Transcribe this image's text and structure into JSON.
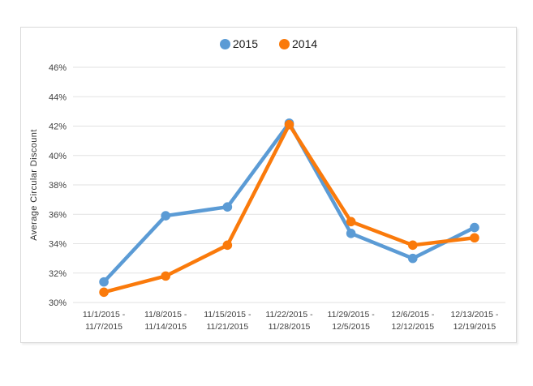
{
  "chart_data": {
    "type": "line",
    "title": "",
    "ylabel": "Average Circular Discount",
    "xlabel": "",
    "categories": [
      "11/1/2015 - 11/7/2015",
      "11/8/2015 - 11/14/2015",
      "11/15/2015 - 11/21/2015",
      "11/22/2015 - 11/28/2015",
      "11/29/2015 - 12/5/2015",
      "12/6/2015 - 12/12/2015",
      "12/13/2015 - 12/19/2015"
    ],
    "series": [
      {
        "name": "2015",
        "color": "#5B9BD5",
        "values": [
          31.4,
          35.9,
          36.5,
          42.2,
          34.7,
          33.0,
          35.1
        ]
      },
      {
        "name": "2014",
        "color": "#FA7A0B",
        "values": [
          30.7,
          31.8,
          33.9,
          42.1,
          35.5,
          33.9,
          34.4
        ]
      }
    ],
    "ylim": [
      30,
      46
    ],
    "ytick_step": 2,
    "ytick_suffix": "%",
    "grid": true,
    "legend_position": "top-center",
    "colors": {
      "gridline": "#e2e2e2",
      "tick_text": "#404040",
      "card_border": "#d9d9d9"
    }
  }
}
